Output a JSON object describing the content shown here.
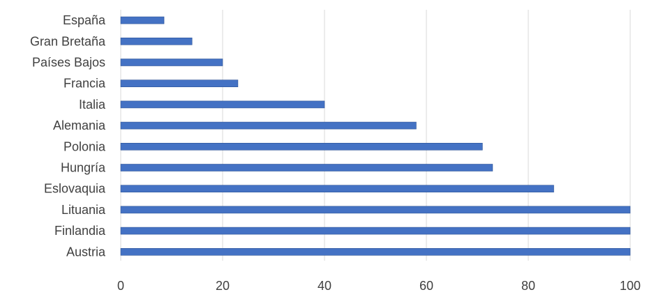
{
  "chart_data": {
    "type": "bar",
    "orientation": "horizontal",
    "categories": [
      "España",
      "Gran Bretaña",
      "Países Bajos",
      "Francia",
      "Italia",
      "Alemania",
      "Polonia",
      "Hungría",
      "Eslovaquia",
      "Lituania",
      "Finlandia",
      "Austria"
    ],
    "values": [
      8.5,
      14,
      20,
      23,
      40,
      58,
      71,
      73,
      85,
      100,
      100,
      100
    ],
    "xlim": [
      0,
      100
    ],
    "xticks": [
      "0",
      "20",
      "40",
      "60",
      "80",
      "100"
    ],
    "grid": "vertical",
    "legend": "none",
    "title": "",
    "xlabel": "",
    "ylabel": "",
    "colors": {
      "bar_fill": "#4472C4",
      "bar_edge": "#2F5597",
      "grid": "#D9D9D9",
      "text": "#404040"
    }
  }
}
